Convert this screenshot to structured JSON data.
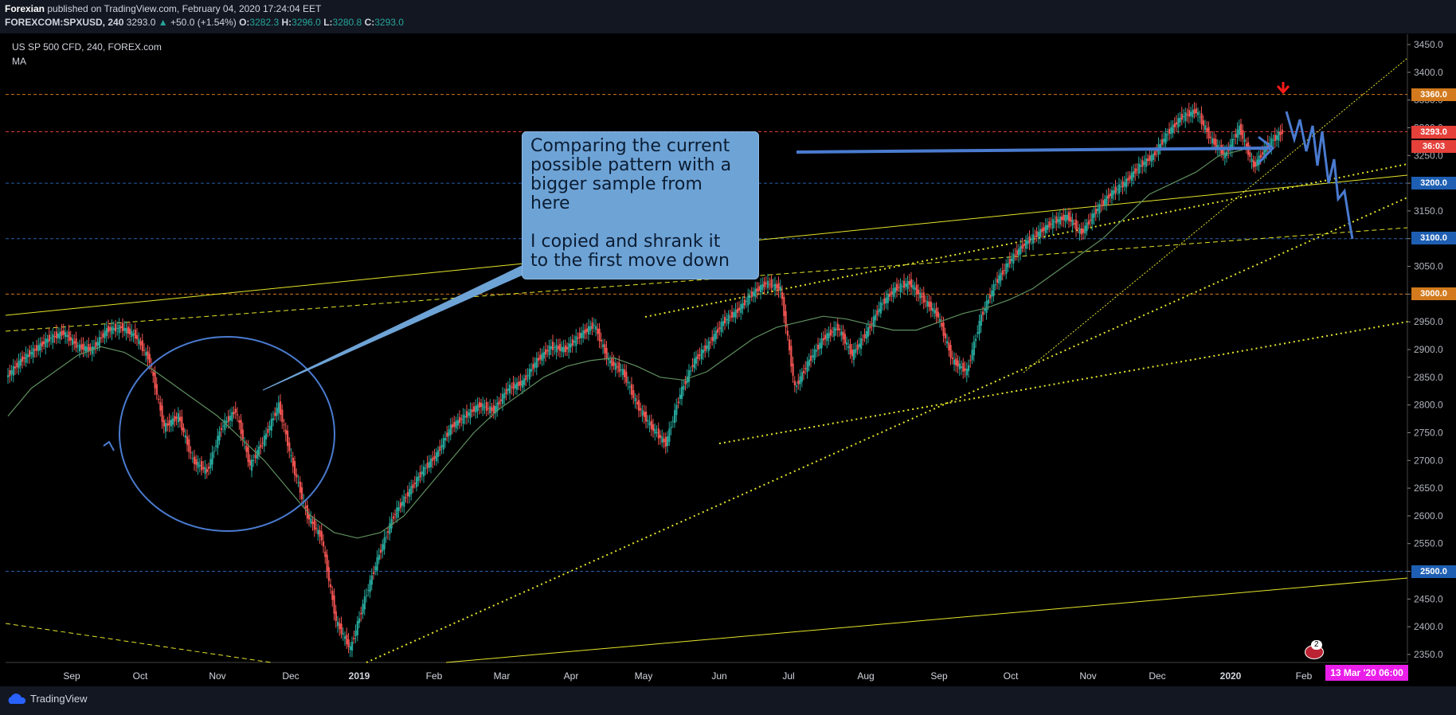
{
  "header": {
    "author": "Forexian",
    "published": "published on TradingView.com, February 04, 2020 17:24:04 EET",
    "symbol": "FOREXCOM:SPXUSD, 240",
    "last": "3293.0",
    "change": "+50.0 (+1.54%)",
    "o_label": "O:",
    "o_value": "3282.3",
    "h_label": "H:",
    "h_value": "3296.0",
    "l_label": "L:",
    "l_value": "3280.8",
    "c_label": "C:",
    "c_value": "3293.0"
  },
  "legend": {
    "title": "US SP 500 CFD, 240, FOREX.com",
    "indicator": "MA"
  },
  "annotation": {
    "line1": "Comparing the current",
    "line2": "possible pattern with a",
    "line3": "bigger sample from",
    "line4": "here",
    "line5": "I copied and shrank it",
    "line6": "to the first move down"
  },
  "price_labels": {
    "l3360": "3360.0",
    "l3293": "3293.0",
    "countdown": "36:03",
    "l3200": "3200.0",
    "l3100": "3100.0",
    "l3000": "3000.0",
    "l2500": "2500.0"
  },
  "date_label": "13 Mar '20   06:00",
  "badge_count": "2",
  "footer": {
    "brand": "TradingView"
  },
  "colors": {
    "background": "#000000",
    "up": "#26a69a",
    "down": "#ef5350",
    "ma": "#5f8f5f",
    "trendline": "#e5e52a",
    "callout": "#6ea3d6",
    "drawing": "#4a7bd0"
  },
  "chart_data": {
    "type": "line",
    "title": "US SP 500 CFD, 240, FOREX.com",
    "ylim": [
      2330,
      3470
    ],
    "y_ticks": [
      2350,
      2400,
      2450,
      2500,
      2550,
      2600,
      2650,
      2700,
      2750,
      2800,
      2850,
      2900,
      2950,
      3000,
      3050,
      3100,
      3150,
      3200,
      3250,
      3300,
      3350,
      3400,
      3450
    ],
    "x_ticks": [
      "Sep",
      "Oct",
      "Nov",
      "Dec",
      "2019",
      "Feb",
      "Mar",
      "Apr",
      "May",
      "Jun",
      "Jul",
      "Aug",
      "Sep",
      "Oct",
      "Nov",
      "Dec",
      "2020",
      "Feb"
    ],
    "horizontal_levels": [
      3360,
      3293,
      3200,
      3100,
      3000,
      2500
    ],
    "series": [
      {
        "values": [
          2850,
          2880,
          2900,
          2920,
          2930,
          2905,
          2900,
          2935,
          2940,
          2925,
          2880,
          2760,
          2780,
          2700,
          2680,
          2760,
          2790,
          2690,
          2740,
          2800,
          2690,
          2600,
          2560,
          2410,
          2360,
          2450,
          2530,
          2600,
          2640,
          2680,
          2710,
          2760,
          2780,
          2800,
          2790,
          2830,
          2840,
          2880,
          2905,
          2900,
          2925,
          2945,
          2880,
          2860,
          2800,
          2760,
          2730,
          2820,
          2880,
          2910,
          2950,
          2970,
          3000,
          3020,
          3010,
          2830,
          2880,
          2920,
          2940,
          2890,
          2930,
          2980,
          3010,
          3020,
          2990,
          2960,
          2880,
          2860,
          2960,
          3020,
          3060,
          3090,
          3110,
          3130,
          3140,
          3110,
          3150,
          3180,
          3200,
          3230,
          3250,
          3290,
          3320,
          3330,
          3280,
          3250,
          3300,
          3230,
          3270,
          3293
        ]
      },
      {
        "values": [
          2780,
          2830,
          2860,
          2890,
          2905,
          2895,
          2870,
          2840,
          2810,
          2780,
          2740,
          2700,
          2650,
          2600,
          2570,
          2560,
          2570,
          2600,
          2650,
          2700,
          2750,
          2790,
          2820,
          2850,
          2870,
          2880,
          2885,
          2870,
          2850,
          2845,
          2860,
          2890,
          2920,
          2940,
          2950,
          2960,
          2955,
          2945,
          2935,
          2935,
          2950,
          2965,
          2975,
          2990,
          3010,
          3040,
          3070,
          3100,
          3140,
          3180,
          3200,
          3220,
          3250,
          3260
        ]
      }
    ]
  }
}
